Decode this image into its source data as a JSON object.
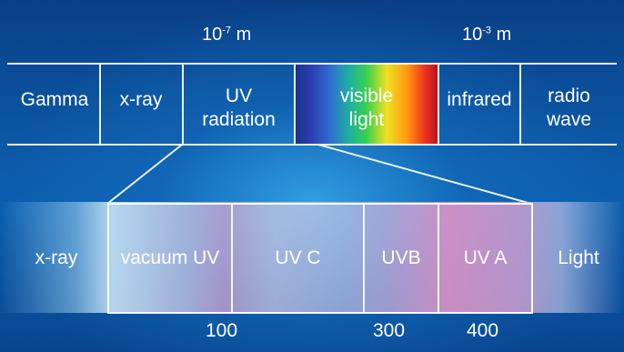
{
  "top_scale": {
    "mark_left": {
      "base": "10",
      "exponent": "-7",
      "unit": "m"
    },
    "mark_right": {
      "base": "10",
      "exponent": "-3",
      "unit": "m"
    }
  },
  "spectrum_bands": [
    {
      "line1": "Gamma",
      "line2": ""
    },
    {
      "line1": "x-ray",
      "line2": ""
    },
    {
      "line1": "UV",
      "line2": "radiation"
    },
    {
      "line1": "visible",
      "line2": "light"
    },
    {
      "line1": "infrared",
      "line2": ""
    },
    {
      "line1": "radio",
      "line2": "wave"
    }
  ],
  "uv_bands": [
    "x-ray",
    "vacuum UV",
    "UV C",
    "UVB",
    "UV A",
    "Light"
  ],
  "wavelength_labels": [
    "100",
    "300",
    "400"
  ],
  "colors": {
    "background": "#0c5aa8",
    "line": "#ffffff",
    "uv_a_tint": "#eb96c8"
  }
}
